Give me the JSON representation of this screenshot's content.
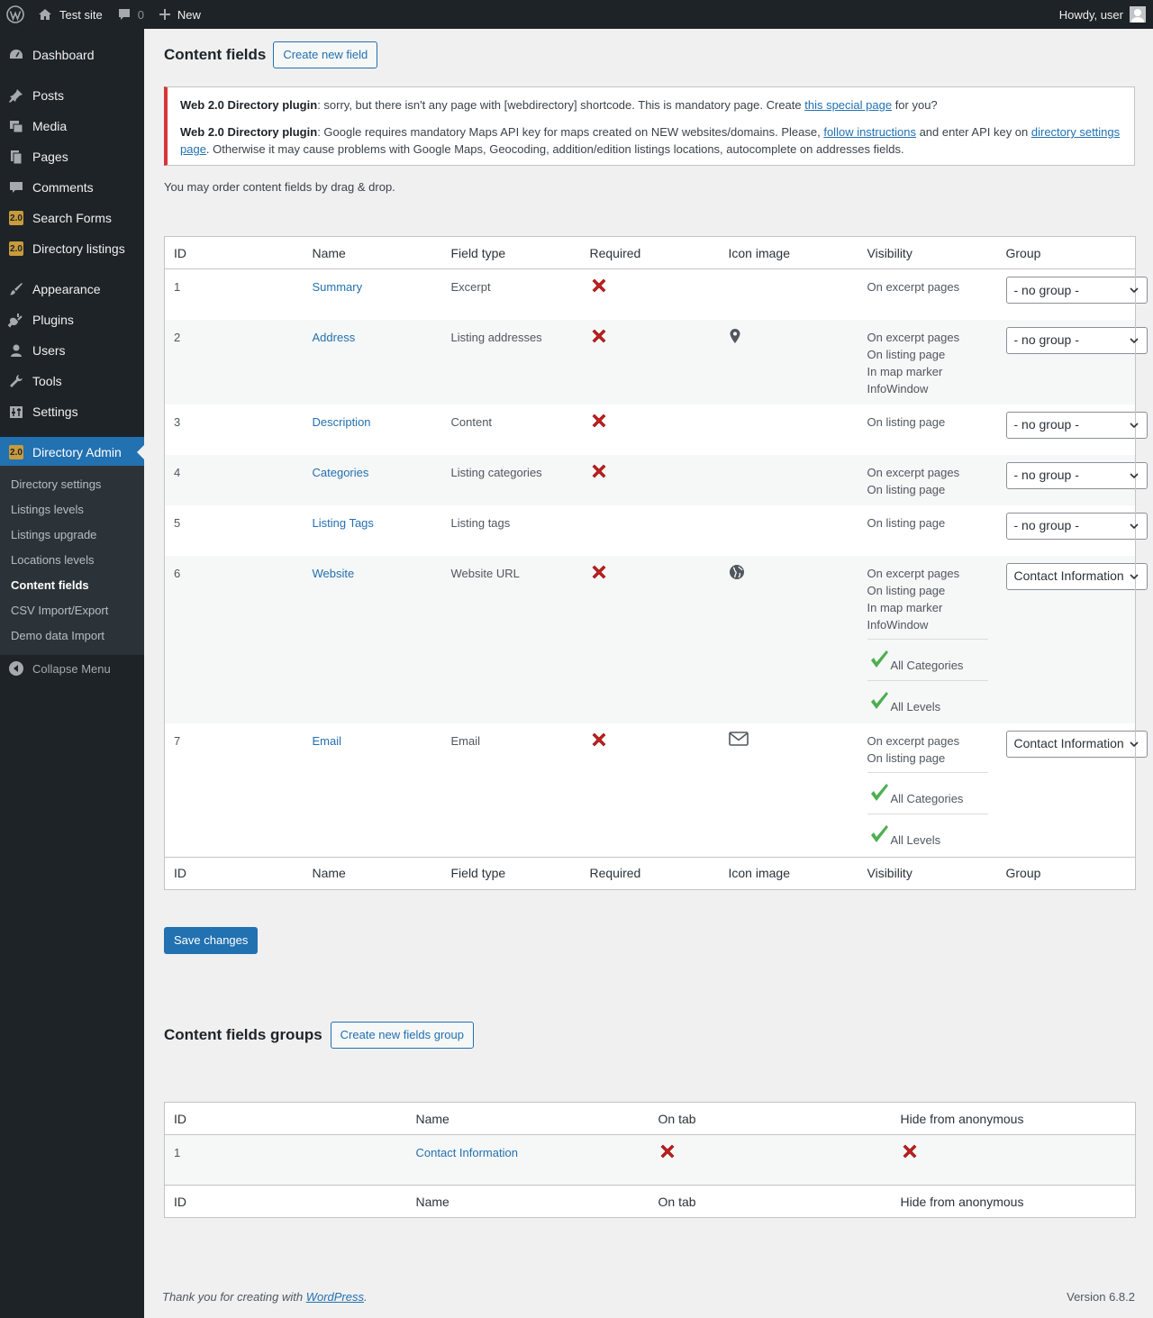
{
  "adminbar": {
    "site_name": "Test site",
    "comments_count": "0",
    "new_label": "New",
    "howdy": "Howdy, user"
  },
  "sidebar": {
    "items": [
      {
        "label": "Dashboard",
        "icon": "dashboard-icon"
      },
      {
        "label": "Posts",
        "icon": "pin-icon"
      },
      {
        "label": "Media",
        "icon": "media-icon"
      },
      {
        "label": "Pages",
        "icon": "pages-icon"
      },
      {
        "label": "Comments",
        "icon": "comment-icon"
      },
      {
        "label": "Search Forms",
        "icon": "w2-icon"
      },
      {
        "label": "Directory listings",
        "icon": "w2-icon"
      },
      {
        "label": "Appearance",
        "icon": "brush-icon"
      },
      {
        "label": "Plugins",
        "icon": "plug-icon"
      },
      {
        "label": "Users",
        "icon": "user-icon"
      },
      {
        "label": "Tools",
        "icon": "wrench-icon"
      },
      {
        "label": "Settings",
        "icon": "settings-icon"
      },
      {
        "label": "Directory Admin",
        "icon": "w2-icon"
      }
    ],
    "w2_badge": "2.0",
    "submenu": [
      "Directory settings",
      "Listings levels",
      "Listings upgrade",
      "Locations levels",
      "Content fields",
      "CSV Import/Export",
      "Demo data Import"
    ],
    "collapse": "Collapse Menu"
  },
  "page": {
    "title": "Content fields",
    "create_button": "Create new field",
    "notice": {
      "p1_bold": "Web 2.0 Directory plugin",
      "p1_text": ": sorry, but there isn't any page with [webdirectory] shortcode. This is mandatory page. Create ",
      "p1_link": "this special page",
      "p1_end": " for you?",
      "p2_bold": "Web 2.0 Directory plugin",
      "p2_text": ": Google requires mandatory Maps API key for maps created on NEW websites/domains. Please, ",
      "p2_link1": "follow instructions",
      "p2_mid": " and enter API key on ",
      "p2_link2": "directory settings page",
      "p2_end": ". Otherwise it may cause problems with Google Maps, Geocoding, addition/edition listings locations, autocomplete on addresses fields."
    },
    "order_hint": "You may order content fields by drag & drop.",
    "fields_columns": [
      "ID",
      "Name",
      "Field type",
      "Required",
      "Icon image",
      "Visibility",
      "Group"
    ],
    "fields": [
      {
        "id": "1",
        "name": "Summary",
        "type": "Excerpt",
        "required": "x-icon",
        "icon": "",
        "visibility": [
          "On excerpt pages"
        ],
        "extras": [],
        "group": "- no group -"
      },
      {
        "id": "2",
        "name": "Address",
        "type": "Listing addresses",
        "required": "x-icon",
        "icon": "map-marker-icon",
        "visibility": [
          "On excerpt pages",
          "On listing page",
          "In map marker",
          "InfoWindow"
        ],
        "extras": [],
        "group": "- no group -"
      },
      {
        "id": "3",
        "name": "Description",
        "type": "Content",
        "required": "x-icon",
        "icon": "",
        "visibility": [
          "On listing page"
        ],
        "extras": [],
        "group": "- no group -"
      },
      {
        "id": "4",
        "name": "Categories",
        "type": "Listing categories",
        "required": "x-icon",
        "icon": "",
        "visibility": [
          "On excerpt pages",
          "On listing page"
        ],
        "extras": [],
        "group": "- no group -"
      },
      {
        "id": "5",
        "name": "Listing Tags",
        "type": "Listing tags",
        "required": "",
        "icon": "",
        "visibility": [
          "On listing page"
        ],
        "extras": [],
        "group": "- no group -"
      },
      {
        "id": "6",
        "name": "Website",
        "type": "Website URL",
        "required": "x-icon",
        "icon": "globe-icon",
        "visibility": [
          "On excerpt pages",
          "On listing page",
          "In map marker",
          "InfoWindow"
        ],
        "extras": [
          "All Categories",
          "All Levels"
        ],
        "group": "Contact Information"
      },
      {
        "id": "7",
        "name": "Email",
        "type": "Email",
        "required": "x-icon",
        "icon": "envelope-icon",
        "visibility": [
          "On excerpt pages",
          "On listing page"
        ],
        "extras": [
          "All Categories",
          "All Levels"
        ],
        "group": "Contact Information"
      }
    ],
    "save_button": "Save changes",
    "groups_title": "Content fields groups",
    "create_group_button": "Create new fields group",
    "groups_columns": [
      "ID",
      "Name",
      "On tab",
      "Hide from anonymous"
    ],
    "groups": [
      {
        "id": "1",
        "name": "Contact Information",
        "on_tab": "x-icon",
        "hide_anon": "x-icon"
      }
    ]
  },
  "footer": {
    "thanks_pre": "Thank you for creating with ",
    "thanks_link": "WordPress",
    "thanks_post": ".",
    "version": "Version 6.8.2"
  },
  "colors": {
    "accent": "#2271b1",
    "error": "#d63638",
    "x_mark": "#c31e1e",
    "check": "#4caf50",
    "menu_bg": "#1d2327"
  }
}
